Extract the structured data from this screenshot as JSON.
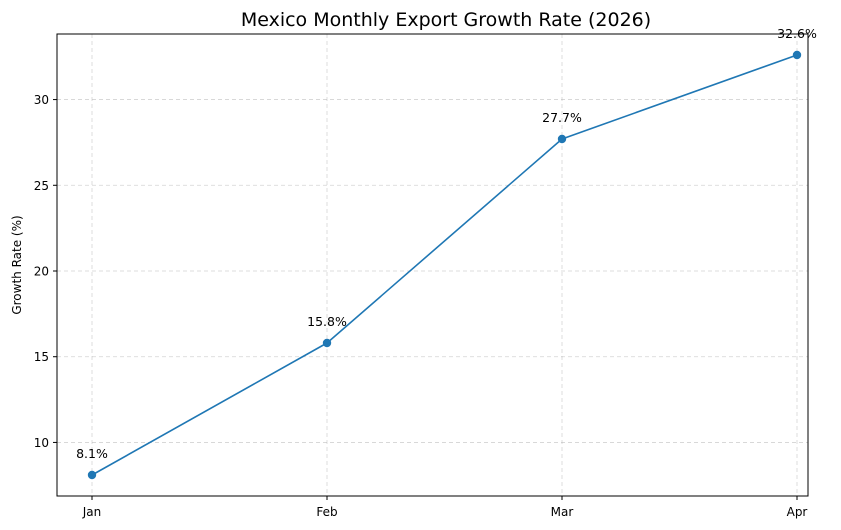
{
  "chart_data": {
    "type": "line",
    "title": "Mexico Monthly Export Growth Rate (2026)",
    "xlabel": "",
    "ylabel": "Growth Rate (%)",
    "categories": [
      "Jan",
      "Feb",
      "Mar",
      "Apr"
    ],
    "series": [
      {
        "values": [
          8.1,
          15.8,
          27.7,
          32.6
        ],
        "data_labels": [
          "8.1%",
          "15.8%",
          "27.7%",
          "32.6%"
        ],
        "color": "#1f77b4",
        "marker": "circle"
      }
    ],
    "ylim": [
      6.875,
      33.825
    ],
    "yticks": [
      10,
      15,
      20,
      25,
      30
    ],
    "ytick_labels": [
      "10",
      "15",
      "20",
      "25",
      "30"
    ],
    "grid": true,
    "grid_style": "dashed"
  }
}
